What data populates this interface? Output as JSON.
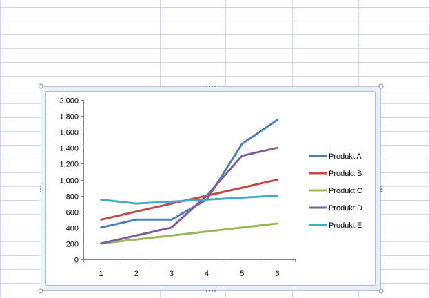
{
  "table": {
    "rows": [
      {
        "label": "Produkt A",
        "values": [
          "400",
          "500",
          "500",
          "750",
          "1,450",
          "1,750"
        ]
      },
      {
        "label": "Produkt B",
        "values": [
          "500",
          "600",
          "700",
          "800",
          "900",
          "1,000"
        ]
      },
      {
        "label": "Produkt C",
        "values": [
          "200",
          "250",
          "300",
          "350",
          "400",
          "450"
        ]
      },
      {
        "label": "Produkt D",
        "values": [
          "200",
          "300",
          "400",
          "800",
          "1,300",
          "1,400"
        ]
      },
      {
        "label": "Produkt E",
        "values": [
          "750",
          "700",
          "725",
          "750",
          "775",
          "800"
        ]
      }
    ]
  },
  "chart_data": {
    "type": "line",
    "x": [
      1,
      2,
      3,
      4,
      5,
      6
    ],
    "ylim": [
      0,
      2000
    ],
    "yticks": [
      0,
      200,
      400,
      600,
      800,
      1000,
      1200,
      1400,
      1600,
      1800,
      2000
    ],
    "ytick_labels": [
      "0",
      "200",
      "400",
      "600",
      "800",
      "1,000",
      "1,200",
      "1,400",
      "1,600",
      "1,800",
      "2,000"
    ],
    "xtick_labels": [
      "1",
      "2",
      "3",
      "4",
      "5",
      "6"
    ],
    "grid": false,
    "legend": "right",
    "series": [
      {
        "name": "Produkt A",
        "color": "#4a7ebb",
        "values": [
          400,
          500,
          500,
          750,
          1450,
          1750
        ]
      },
      {
        "name": "Produkt B",
        "color": "#be4b48",
        "values": [
          500,
          600,
          700,
          800,
          900,
          1000
        ]
      },
      {
        "name": "Produkt C",
        "color": "#98b954",
        "values": [
          200,
          250,
          300,
          350,
          400,
          450
        ]
      },
      {
        "name": "Produkt D",
        "color": "#7d5fa0",
        "values": [
          200,
          300,
          400,
          800,
          1300,
          1400
        ]
      },
      {
        "name": "Produkt E",
        "color": "#46aac5",
        "values": [
          750,
          700,
          725,
          750,
          775,
          800
        ]
      }
    ]
  },
  "colors": {
    "gridline": "#d0d7e5",
    "selection_border": "#b5c7db",
    "axis": "#868686"
  }
}
